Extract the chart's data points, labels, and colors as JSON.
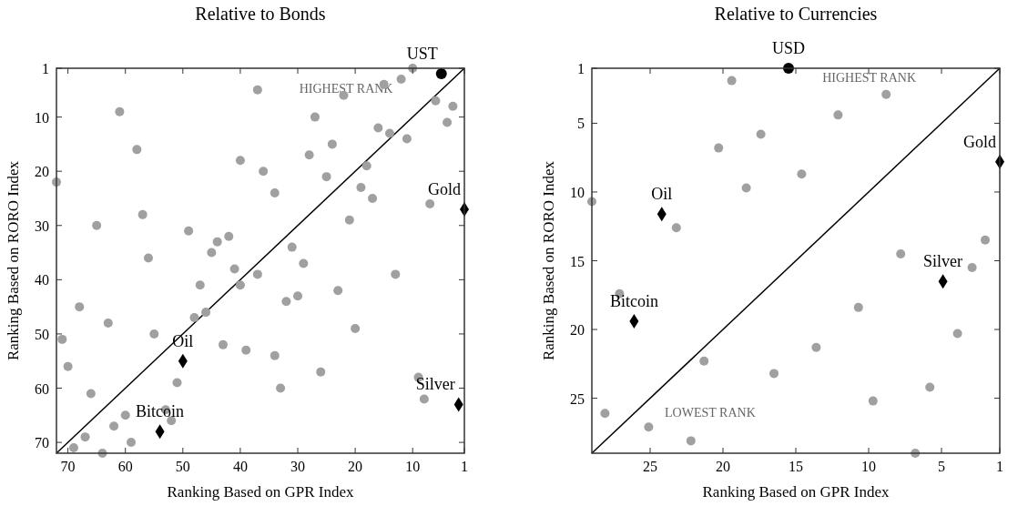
{
  "chart_data": [
    {
      "type": "scatter",
      "title": "Relative to Bonds",
      "xlabel": "Ranking Based on GPR Index",
      "ylabel": "Ranking Based on RORO Index",
      "xlim": [
        72,
        1
      ],
      "ylim": [
        72,
        1
      ],
      "xticks": [
        70,
        60,
        50,
        40,
        30,
        20,
        10,
        1
      ],
      "yticks": [
        1,
        10,
        20,
        30,
        40,
        50,
        60,
        70
      ],
      "grid": false,
      "annotations": [
        "HIGHEST RANK"
      ],
      "series": [
        {
          "type": "line",
          "color": "#000000",
          "line_style": "solid",
          "x": [
            72,
            1
          ],
          "values": [
            72,
            1
          ]
        },
        {
          "color": "#a0a0a0",
          "marker": "circle",
          "x": [
            37,
            61,
            58,
            40,
            36,
            72,
            57,
            65,
            49,
            42,
            44,
            45,
            56,
            41,
            37,
            47,
            40,
            68,
            46,
            48,
            63,
            71,
            55,
            43,
            39,
            70,
            51,
            66,
            60,
            53,
            52,
            62,
            67,
            69,
            59,
            64,
            15,
            12,
            10,
            22,
            6,
            3,
            27,
            4,
            16,
            14,
            11,
            24,
            28,
            18,
            25,
            34,
            19,
            17,
            7,
            21,
            31,
            29,
            13,
            23,
            30,
            32,
            20,
            34,
            26,
            33,
            9,
            8
          ],
          "values": [
            5,
            9,
            16,
            18,
            20,
            22,
            28,
            30,
            31,
            32,
            33,
            35,
            36,
            38,
            39,
            41,
            41,
            45,
            46,
            47,
            48,
            51,
            50,
            52,
            53,
            56,
            59,
            61,
            65,
            64,
            66,
            67,
            69,
            71,
            70,
            72,
            4,
            3,
            1,
            6,
            7,
            8,
            10,
            11,
            12,
            13,
            14,
            15,
            17,
            19,
            21,
            24,
            23,
            25,
            26,
            29,
            34,
            37,
            39,
            42,
            43,
            44,
            49,
            54,
            57,
            60,
            58,
            62
          ]
        },
        {
          "name": "UST",
          "color": "#000000",
          "marker": "circle",
          "x": [
            5
          ],
          "values": [
            2
          ]
        },
        {
          "name": "Gold",
          "color": "#000000",
          "marker": "diamond",
          "x": [
            1
          ],
          "values": [
            27
          ]
        },
        {
          "name": "Oil",
          "color": "#000000",
          "marker": "diamond",
          "x": [
            50
          ],
          "values": [
            55
          ]
        },
        {
          "name": "Bitcoin",
          "color": "#000000",
          "marker": "diamond",
          "x": [
            54
          ],
          "values": [
            68
          ]
        },
        {
          "name": "Silver",
          "color": "#000000",
          "marker": "diamond",
          "x": [
            2
          ],
          "values": [
            63
          ]
        }
      ]
    },
    {
      "type": "scatter",
      "title": "Relative to Currencies",
      "xlabel": "Ranking Based on GPR Index",
      "ylabel": "Ranking Based on RORO Index",
      "xlim": [
        29,
        1
      ],
      "ylim": [
        29,
        1
      ],
      "xticks": [
        25,
        20,
        15,
        10,
        5,
        1
      ],
      "yticks": [
        1,
        5,
        10,
        15,
        20,
        25
      ],
      "grid": false,
      "annotations": [
        "HIGHEST RANK",
        "LOWEST RANK"
      ],
      "series": [
        {
          "type": "line",
          "color": "#000000",
          "line_style": "solid",
          "x": [
            29,
            1
          ],
          "values": [
            29,
            1
          ]
        },
        {
          "color": "#a0a0a0",
          "marker": "circle",
          "x": [
            29,
            28.1,
            27.1,
            25.1,
            23.2,
            21.3,
            22.2,
            20.3,
            19.4,
            18.4,
            17.4,
            16.5,
            14.6,
            12.1,
            8.8,
            13.6,
            10.7,
            9.7,
            7.8,
            6.8,
            5.8,
            3.9,
            2.9,
            2.0
          ],
          "values": [
            10.7,
            26.1,
            17.4,
            27.1,
            12.6,
            22.3,
            28.1,
            6.8,
            1.9,
            9.7,
            5.8,
            23.2,
            8.7,
            4.4,
            2.9,
            21.3,
            18.4,
            25.2,
            14.5,
            29,
            24.2,
            20.3,
            15.5,
            13.5
          ]
        },
        {
          "name": "USD",
          "color": "#000000",
          "marker": "circle",
          "x": [
            15.5
          ],
          "values": [
            1
          ]
        },
        {
          "name": "Gold",
          "color": "#000000",
          "marker": "diamond",
          "x": [
            1
          ],
          "values": [
            7.8
          ]
        },
        {
          "name": "Oil",
          "color": "#000000",
          "marker": "diamond",
          "x": [
            24.2
          ],
          "values": [
            11.6
          ]
        },
        {
          "name": "Bitcoin",
          "color": "#000000",
          "marker": "diamond",
          "x": [
            26.1
          ],
          "values": [
            19.4
          ]
        },
        {
          "name": "Silver",
          "color": "#000000",
          "marker": "diamond",
          "x": [
            4.9
          ],
          "values": [
            16.5
          ]
        }
      ]
    }
  ]
}
